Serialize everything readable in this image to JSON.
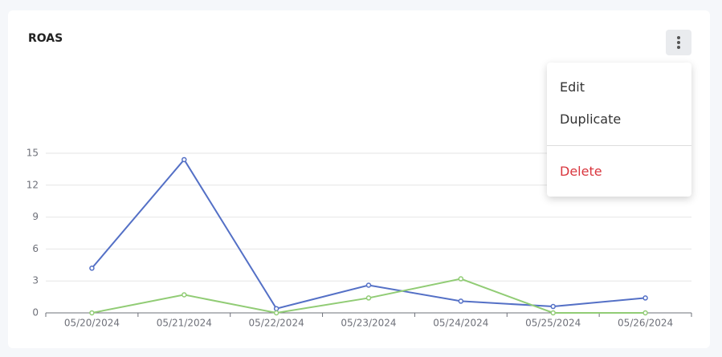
{
  "card": {
    "title": "ROAS"
  },
  "menu": {
    "items": [
      "Edit",
      "Duplicate"
    ],
    "danger_item": "Delete"
  },
  "chart_data": {
    "type": "line",
    "categories": [
      "05/20/2024",
      "05/21/2024",
      "05/22/2024",
      "05/23/2024",
      "05/24/2024",
      "05/25/2024",
      "05/26/2024"
    ],
    "series": [
      {
        "color": "#5470c6",
        "values": [
          4.2,
          14.4,
          0.4,
          2.6,
          1.1,
          0.6,
          1.4
        ]
      },
      {
        "color": "#91cc75",
        "values": [
          0,
          1.7,
          0,
          1.4,
          3.2,
          0,
          0
        ]
      }
    ],
    "ylim": [
      0,
      15
    ],
    "yticks": [
      0,
      3,
      6,
      9,
      12,
      15
    ],
    "grid": true
  }
}
